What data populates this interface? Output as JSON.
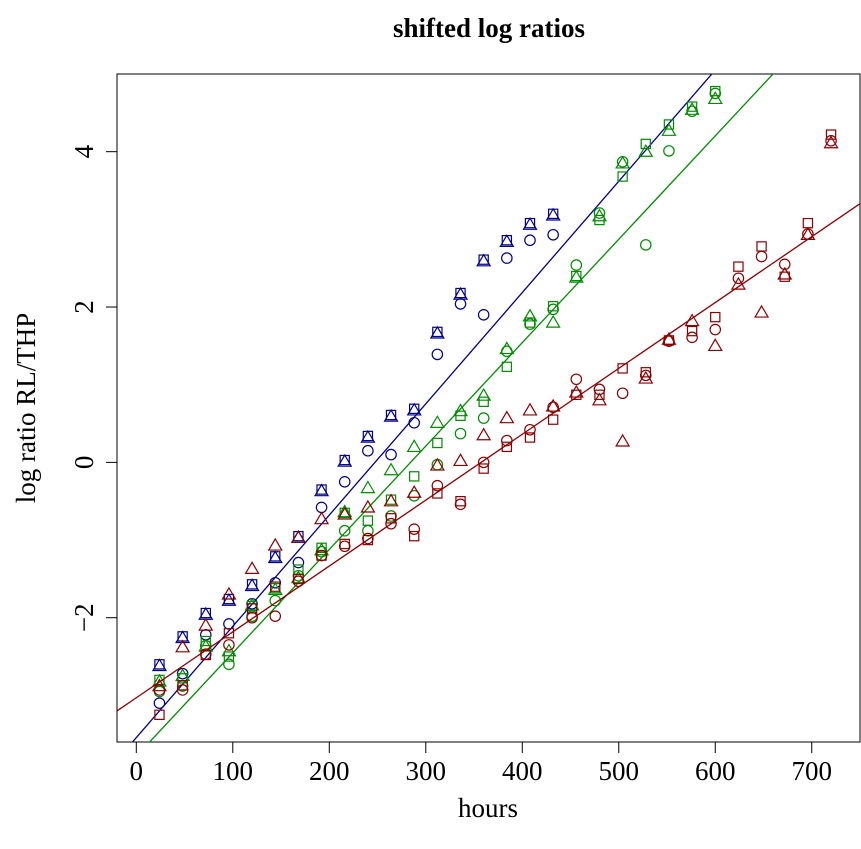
{
  "chart_data": {
    "type": "scatter",
    "title": "shifted log ratios",
    "xlabel": "hours",
    "ylabel": "log ratio RL/THP",
    "xlim": [
      -20,
      750
    ],
    "ylim": [
      -3.6,
      5.0
    ],
    "xticks": [
      0,
      100,
      200,
      300,
      400,
      500,
      600,
      700
    ],
    "yticks": [
      -2,
      0,
      2,
      4
    ],
    "xtick_labels": [
      "0",
      "100",
      "200",
      "300",
      "400",
      "500",
      "600",
      "700"
    ],
    "ytick_labels": [
      "−2",
      "0",
      "2",
      "4"
    ],
    "grid": false,
    "legend": "none",
    "series": [
      {
        "color": "#00008B",
        "fit_line": {
          "x": [
            -20,
            750
          ],
          "y": [
            -3.83,
            7.2
          ]
        },
        "circles": [
          [
            24,
            -3.1
          ],
          [
            48,
            -2.72
          ],
          [
            72,
            -2.22
          ],
          [
            96,
            -2.08
          ],
          [
            120,
            -1.82
          ],
          [
            144,
            -1.55
          ],
          [
            168,
            -1.29
          ],
          [
            192,
            -0.58
          ],
          [
            216,
            -0.25
          ],
          [
            240,
            0.15
          ],
          [
            264,
            0.1
          ],
          [
            288,
            0.51
          ],
          [
            312,
            1.39
          ],
          [
            336,
            2.04
          ],
          [
            360,
            1.9
          ],
          [
            384,
            2.63
          ],
          [
            408,
            2.86
          ],
          [
            432,
            2.93
          ]
        ],
        "squares": [
          [
            24,
            -2.6
          ],
          [
            48,
            -2.24
          ],
          [
            72,
            -1.94
          ],
          [
            96,
            -1.76
          ],
          [
            120,
            -1.57
          ],
          [
            144,
            -1.21
          ],
          [
            168,
            -0.95
          ],
          [
            192,
            -0.35
          ],
          [
            216,
            0.03
          ],
          [
            240,
            0.34
          ],
          [
            264,
            0.61
          ],
          [
            288,
            0.69
          ],
          [
            312,
            1.68
          ],
          [
            336,
            2.18
          ],
          [
            360,
            2.61
          ],
          [
            384,
            2.86
          ],
          [
            408,
            3.08
          ],
          [
            432,
            3.2
          ]
        ],
        "triangles": [
          [
            24,
            -2.62
          ],
          [
            48,
            -2.26
          ],
          [
            72,
            -1.96
          ],
          [
            96,
            -1.78
          ],
          [
            120,
            -1.59
          ],
          [
            144,
            -1.23
          ],
          [
            168,
            -0.97
          ],
          [
            192,
            -0.37
          ],
          [
            216,
            0.01
          ],
          [
            240,
            0.32
          ],
          [
            264,
            0.59
          ],
          [
            288,
            0.67
          ],
          [
            312,
            1.66
          ],
          [
            336,
            2.16
          ],
          [
            360,
            2.59
          ],
          [
            384,
            2.84
          ],
          [
            408,
            3.06
          ],
          [
            432,
            3.18
          ]
        ]
      },
      {
        "color": "#008B00",
        "fit_line": {
          "x": [
            -20,
            750
          ],
          "y": [
            -4.05,
            6.2
          ]
        },
        "circles": [
          [
            24,
            -2.95
          ],
          [
            48,
            -2.88
          ],
          [
            72,
            -2.36
          ],
          [
            96,
            -2.6
          ],
          [
            120,
            -1.98
          ],
          [
            144,
            -1.78
          ],
          [
            168,
            -1.46
          ],
          [
            192,
            -1.15
          ],
          [
            216,
            -0.88
          ],
          [
            240,
            -0.88
          ],
          [
            264,
            -0.69
          ],
          [
            288,
            -0.43
          ],
          [
            312,
            -0.03
          ],
          [
            336,
            0.37
          ],
          [
            360,
            0.57
          ],
          [
            384,
            1.43
          ],
          [
            408,
            1.78
          ],
          [
            432,
            1.97
          ],
          [
            456,
            2.54
          ],
          [
            480,
            3.21
          ],
          [
            504,
            3.87
          ],
          [
            528,
            2.8
          ],
          [
            552,
            4.01
          ],
          [
            576,
            4.52
          ],
          [
            600,
            4.75
          ]
        ],
        "squares": [
          [
            24,
            -2.8
          ],
          [
            48,
            -2.78
          ],
          [
            72,
            -2.3
          ],
          [
            96,
            -2.5
          ],
          [
            120,
            -1.85
          ],
          [
            144,
            -1.62
          ],
          [
            168,
            -1.38
          ],
          [
            192,
            -1.1
          ],
          [
            216,
            -0.65
          ],
          [
            240,
            -0.75
          ],
          [
            264,
            -0.48
          ],
          [
            288,
            -0.18
          ],
          [
            312,
            0.25
          ],
          [
            336,
            0.6
          ],
          [
            360,
            0.78
          ],
          [
            384,
            1.23
          ],
          [
            408,
            1.8
          ],
          [
            432,
            2.01
          ],
          [
            456,
            2.4
          ],
          [
            480,
            3.12
          ],
          [
            504,
            3.68
          ],
          [
            528,
            4.1
          ],
          [
            552,
            4.35
          ],
          [
            576,
            4.58
          ],
          [
            600,
            4.78
          ]
        ],
        "triangles": [
          [
            24,
            -2.82
          ],
          [
            48,
            -2.75
          ],
          [
            72,
            -2.37
          ],
          [
            96,
            -2.43
          ],
          [
            120,
            -1.84
          ],
          [
            144,
            -1.64
          ],
          [
            168,
            -1.49
          ],
          [
            192,
            -1.13
          ],
          [
            216,
            -0.64
          ],
          [
            240,
            -0.33
          ],
          [
            264,
            -0.1
          ],
          [
            288,
            0.2
          ],
          [
            312,
            0.51
          ],
          [
            336,
            0.66
          ],
          [
            360,
            0.86
          ],
          [
            384,
            1.46
          ],
          [
            408,
            1.88
          ],
          [
            432,
            1.8
          ],
          [
            456,
            2.38
          ],
          [
            480,
            3.17
          ],
          [
            504,
            3.85
          ],
          [
            528,
            4.0
          ],
          [
            552,
            4.27
          ],
          [
            576,
            4.54
          ],
          [
            600,
            4.68
          ]
        ]
      },
      {
        "color": "#8B0000",
        "fit_line": {
          "x": [
            -20,
            750
          ],
          "y": [
            -3.2,
            3.33
          ]
        },
        "circles": [
          [
            24,
            -2.93
          ],
          [
            48,
            -2.93
          ],
          [
            72,
            -2.47
          ],
          [
            96,
            -2.35
          ],
          [
            120,
            -2.0
          ],
          [
            144,
            -1.98
          ],
          [
            168,
            -1.53
          ],
          [
            192,
            -1.2
          ],
          [
            216,
            -1.08
          ],
          [
            240,
            -0.98
          ],
          [
            264,
            -0.79
          ],
          [
            288,
            -0.86
          ],
          [
            312,
            -0.3
          ],
          [
            336,
            -0.54
          ],
          [
            360,
            0.0
          ],
          [
            384,
            0.28
          ],
          [
            408,
            0.42
          ],
          [
            432,
            0.71
          ],
          [
            456,
            1.07
          ],
          [
            480,
            0.94
          ],
          [
            504,
            0.89
          ],
          [
            528,
            1.12
          ],
          [
            552,
            1.56
          ],
          [
            576,
            1.61
          ],
          [
            600,
            1.71
          ],
          [
            624,
            2.37
          ],
          [
            648,
            2.65
          ],
          [
            672,
            2.55
          ],
          [
            696,
            2.94
          ],
          [
            720,
            4.14
          ]
        ],
        "squares": [
          [
            24,
            -3.25
          ],
          [
            48,
            -2.87
          ],
          [
            72,
            -2.48
          ],
          [
            96,
            -2.2
          ],
          [
            120,
            -1.88
          ],
          [
            144,
            -1.6
          ],
          [
            168,
            -1.5
          ],
          [
            192,
            -1.2
          ],
          [
            216,
            -1.05
          ],
          [
            240,
            -1.0
          ],
          [
            264,
            -0.72
          ],
          [
            288,
            -0.95
          ],
          [
            312,
            -0.4
          ],
          [
            336,
            -0.5
          ],
          [
            360,
            -0.08
          ],
          [
            384,
            0.2
          ],
          [
            408,
            0.32
          ],
          [
            432,
            0.55
          ],
          [
            456,
            0.87
          ],
          [
            480,
            0.87
          ],
          [
            504,
            1.21
          ],
          [
            528,
            1.16
          ],
          [
            552,
            1.57
          ],
          [
            576,
            1.69
          ],
          [
            600,
            1.87
          ],
          [
            624,
            2.52
          ],
          [
            648,
            2.78
          ],
          [
            672,
            2.39
          ],
          [
            696,
            3.08
          ],
          [
            720,
            4.22
          ]
        ],
        "triangles": [
          [
            24,
            -2.88
          ],
          [
            48,
            -2.38
          ],
          [
            72,
            -2.1
          ],
          [
            96,
            -1.7
          ],
          [
            120,
            -1.37
          ],
          [
            144,
            -1.07
          ],
          [
            168,
            -0.97
          ],
          [
            192,
            -0.73
          ],
          [
            216,
            -0.67
          ],
          [
            240,
            -0.58
          ],
          [
            264,
            -0.5
          ],
          [
            288,
            -0.39
          ],
          [
            312,
            -0.04
          ],
          [
            336,
            0.02
          ],
          [
            360,
            0.35
          ],
          [
            384,
            0.57
          ],
          [
            408,
            0.67
          ],
          [
            432,
            0.72
          ],
          [
            456,
            0.9
          ],
          [
            480,
            0.8
          ],
          [
            504,
            0.27
          ],
          [
            528,
            1.08
          ],
          [
            552,
            1.58
          ],
          [
            576,
            1.82
          ],
          [
            600,
            1.5
          ],
          [
            624,
            2.29
          ],
          [
            648,
            1.93
          ],
          [
            672,
            2.42
          ],
          [
            696,
            2.93
          ],
          [
            720,
            4.11
          ]
        ]
      }
    ]
  }
}
